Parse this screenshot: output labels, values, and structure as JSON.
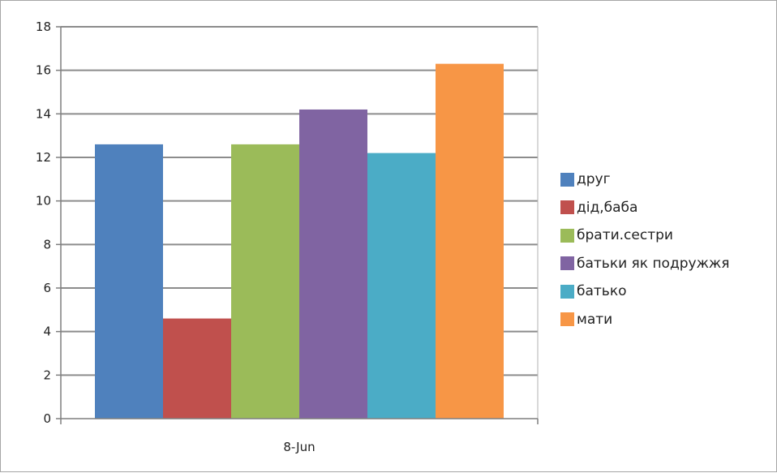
{
  "chart_data": {
    "type": "bar",
    "categories": [
      "8-Jun"
    ],
    "series": [
      {
        "name": "друг",
        "values": [
          12.6
        ],
        "color": "#4f81bd"
      },
      {
        "name": "дід,баба",
        "values": [
          4.6
        ],
        "color": "#c0504d"
      },
      {
        "name": "брати.сестри",
        "values": [
          12.6
        ],
        "color": "#9bbb59"
      },
      {
        "name": "батьки як подружжя",
        "values": [
          14.2
        ],
        "color": "#8064a2"
      },
      {
        "name": "батько",
        "values": [
          12.2
        ],
        "color": "#4bacc6"
      },
      {
        "name": "мати",
        "values": [
          16.3
        ],
        "color": "#f79646"
      }
    ],
    "title": "",
    "xlabel": "",
    "ylabel": "",
    "ylim": [
      0,
      18
    ],
    "yticks": [
      "0",
      "2",
      "4",
      "6",
      "8",
      "10",
      "12",
      "14",
      "16",
      "18"
    ],
    "grid": true,
    "legend_position": "right"
  }
}
